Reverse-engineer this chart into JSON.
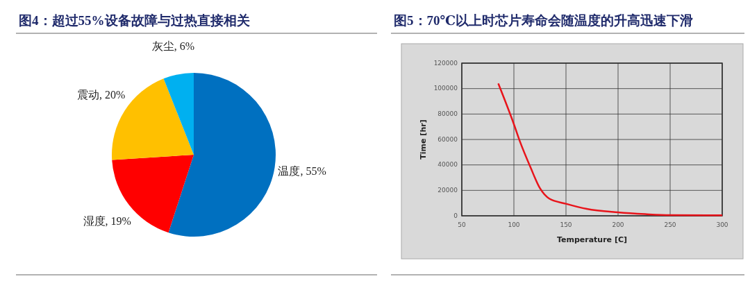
{
  "chart_data": [
    {
      "type": "pie",
      "title": "图4：超过55%设备故障与过热直接相关",
      "categories": [
        "温度",
        "湿度",
        "震动",
        "灰尘"
      ],
      "values": [
        55,
        19,
        20,
        6
      ],
      "colors": [
        "#0070c0",
        "#ff0000",
        "#ffc000",
        "#00b0f0"
      ],
      "value_labels": [
        ", 55%",
        ", 19%",
        ", 20%",
        ", 6%"
      ]
    },
    {
      "type": "line",
      "title": "图5：70℃以上时芯片寿命会随温度的升高迅速下滑",
      "xlabel": "Temperature [C]",
      "ylabel": "Time [hr]",
      "x": [
        85,
        100,
        106,
        116,
        125,
        134,
        150,
        170,
        200,
        226,
        250,
        300
      ],
      "series": [
        {
          "color": "#e8141b",
          "values": [
            104000,
            72000,
            58000,
            38000,
            21700,
            13500,
            9500,
            5400,
            2700,
            1300,
            500,
            400
          ]
        }
      ],
      "xlim": [
        50,
        300
      ],
      "xticks": [
        50,
        100,
        150,
        200,
        250,
        300
      ],
      "ylim": [
        0,
        120000
      ],
      "yticks": [
        0,
        20000,
        40000,
        60000,
        80000,
        100000,
        120000
      ],
      "grid": true
    }
  ]
}
